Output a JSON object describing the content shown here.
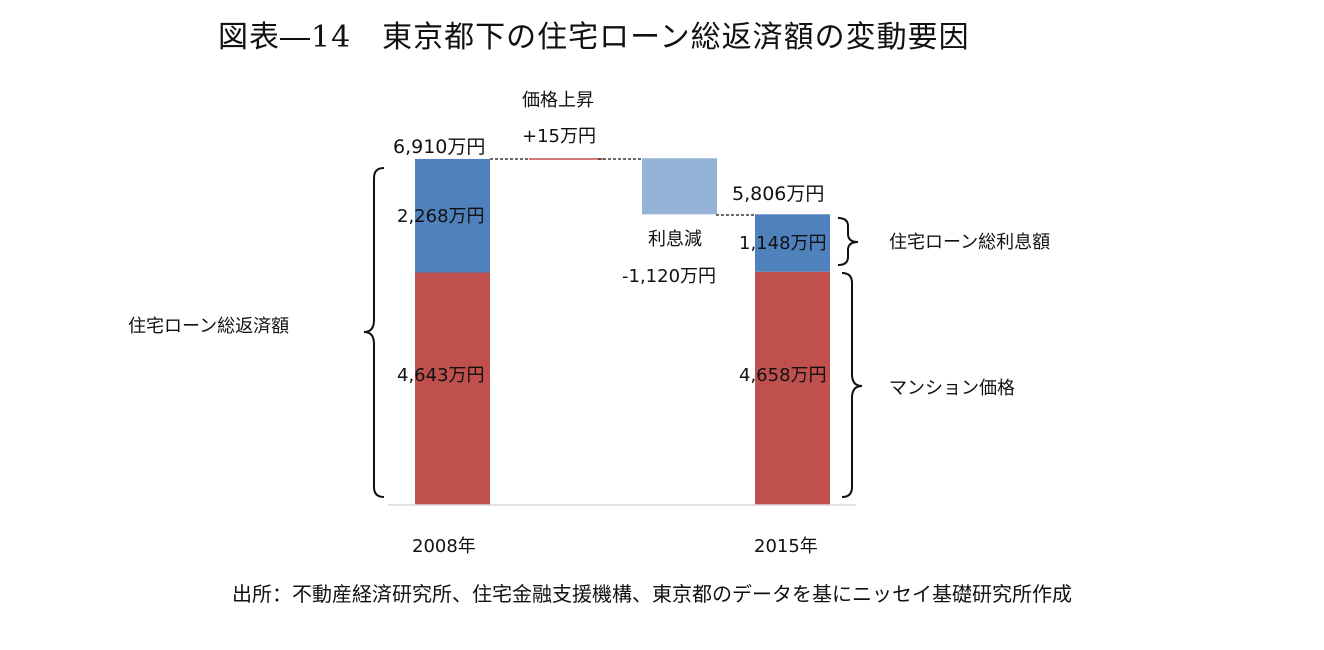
{
  "title": "図表―14　東京都下の住宅ローン総返済額の変動要因",
  "source": "出所：不動産経済研究所、住宅金融支援機構、東京都のデータを基にニッセイ基礎研究所作成",
  "chart_data": {
    "type": "bar",
    "subtype": "waterfall",
    "categories": [
      "2008年",
      "",
      "",
      "2015年"
    ],
    "series": [
      {
        "name": "マンション価格",
        "color": "#c0504d",
        "values": [
          4643,
          null,
          null,
          4658
        ]
      },
      {
        "name": "住宅ローン総利息額",
        "color": "#4f81bd",
        "values": [
          2268,
          null,
          null,
          1148
        ]
      }
    ],
    "steps": [
      {
        "label": "価格上昇",
        "value_label": "+15万円",
        "value": 15,
        "color": "#c0504d"
      },
      {
        "label": "利息減",
        "value_label": "-1,120万円",
        "value": -1120,
        "color": "#95b3d7"
      }
    ],
    "totals": [
      {
        "category": "2008年",
        "value": 6910,
        "label": "6,910万円"
      },
      {
        "category": "2015年",
        "value": 5806,
        "label": "5,806万円"
      }
    ],
    "segment_labels": {
      "2008_price": "4,643万円",
      "2008_interest": "2,268万円",
      "2015_price": "4,658万円",
      "2015_interest": "1,148万円"
    },
    "brace_labels": {
      "total_repayment": "住宅ローン総返済額",
      "total_interest": "住宅ローン総利息額",
      "condo_price": "マンション価格"
    },
    "xlim_categories": 4,
    "ylim": [
      0,
      6910
    ],
    "grid": false,
    "legend": "none"
  }
}
